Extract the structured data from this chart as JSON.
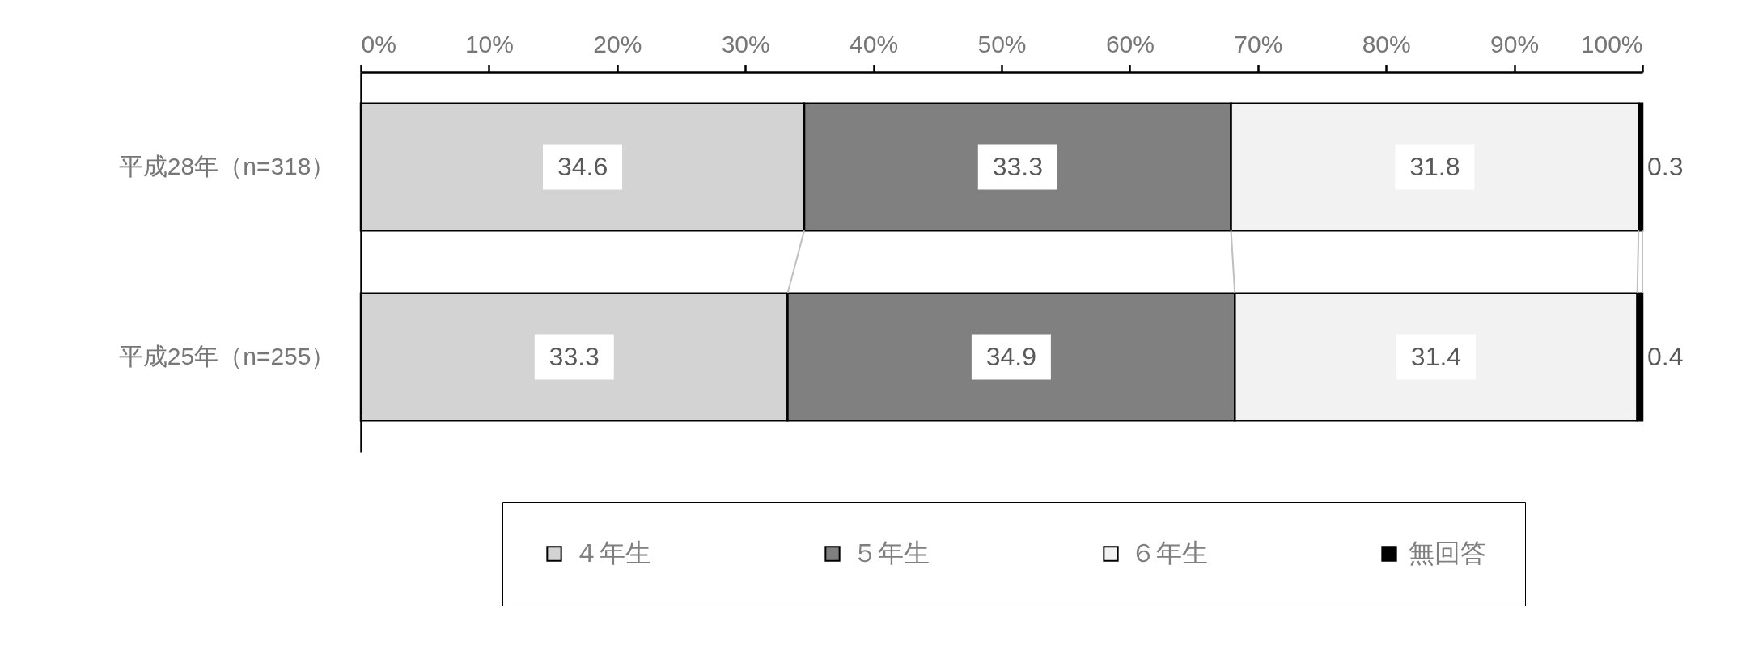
{
  "chart_data": {
    "type": "bar",
    "orientation": "horizontal",
    "stacked": true,
    "categories": [
      "平成28年（n=318）",
      "平成25年（n=255）"
    ],
    "series": [
      {
        "name": "４年生",
        "color": "#d3d3d3",
        "values": [
          34.6,
          33.3
        ]
      },
      {
        "name": "５年生",
        "color": "#808080",
        "values": [
          33.3,
          34.9
        ]
      },
      {
        "name": "６年生",
        "color": "#f2f2f2",
        "values": [
          31.8,
          31.4
        ]
      },
      {
        "name": "無回答",
        "color": "#000000",
        "values": [
          0.3,
          0.4
        ]
      }
    ],
    "xlim": [
      0,
      100
    ],
    "xticks": [
      {
        "value": 0,
        "label": "0%"
      },
      {
        "value": 10,
        "label": "10%"
      },
      {
        "value": 20,
        "label": "20%"
      },
      {
        "value": 30,
        "label": "30%"
      },
      {
        "value": 40,
        "label": "40%"
      },
      {
        "value": 50,
        "label": "50%"
      },
      {
        "value": 60,
        "label": "60%"
      },
      {
        "value": 70,
        "label": "70%"
      },
      {
        "value": 80,
        "label": "80%"
      },
      {
        "value": 90,
        "label": "90%"
      },
      {
        "value": 100,
        "label": "100%"
      }
    ],
    "data_labels": true,
    "legend": "bottom",
    "grid": false
  }
}
